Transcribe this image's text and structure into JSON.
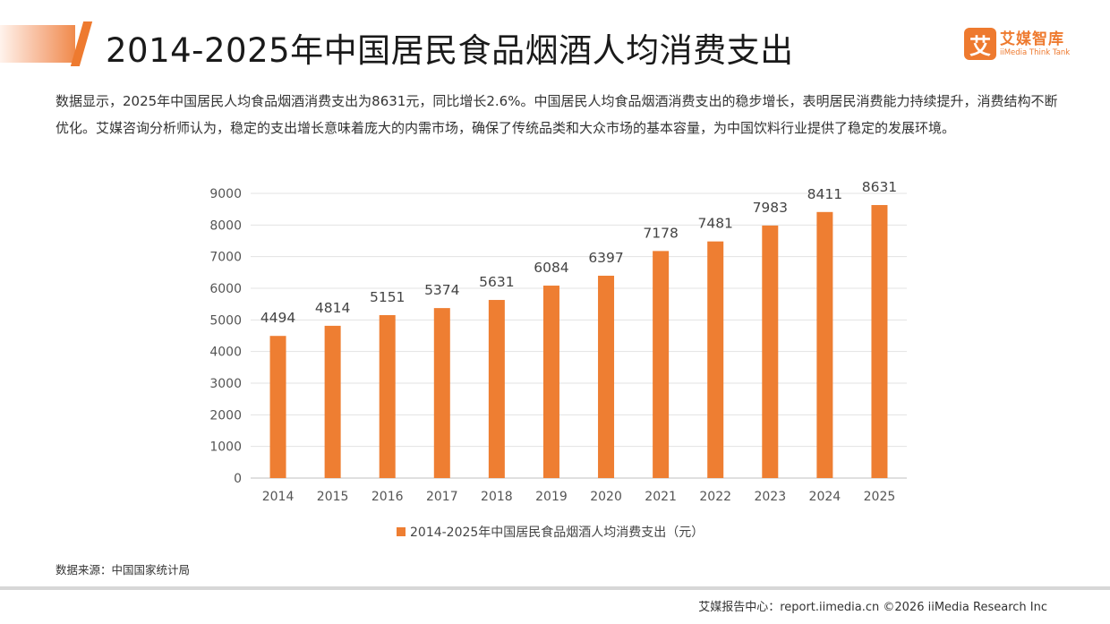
{
  "header": {
    "title": "2014-2025年中国居民食品烟酒人均消费支出"
  },
  "brand": {
    "icon_char": "艾",
    "name_cn": "艾媒智库",
    "name_en": "iiMedia Think Tank",
    "color": "#ee7a2f"
  },
  "description": "数据显示，2025年中国居民人均食品烟酒消费支出为8631元，同比增长2.6%。中国居民人均食品烟酒消费支出的稳步增长，表明居民消费能力持续提升，消费结构不断优化。艾媒咨询分析师认为，稳定的支出增长意味着庞大的内需市场，确保了传统品类和大众市场的基本容量，为中国饮料行业提供了稳定的发展环境。",
  "chart_data": {
    "type": "bar",
    "categories": [
      "2014",
      "2015",
      "2016",
      "2017",
      "2018",
      "2019",
      "2020",
      "2021",
      "2022",
      "2023",
      "2024",
      "2025"
    ],
    "series": [
      {
        "name": "2014-2025年中国居民食品烟酒人均消费支出（元）",
        "values": [
          4494,
          4814,
          5151,
          5374,
          5631,
          6084,
          6397,
          7178,
          7481,
          7983,
          8411,
          8631
        ],
        "color": "#ee7e32"
      }
    ],
    "y_ticks": [
      0,
      1000,
      2000,
      3000,
      4000,
      5000,
      6000,
      7000,
      8000,
      9000
    ],
    "ylim": [
      0,
      9000
    ],
    "grid": true,
    "data_labels": true,
    "legend_position": "bottom"
  },
  "source": "数据来源：中国国家统计局",
  "footer": "艾媒报告中心：report.iimedia.cn ©2026 iiMedia Research Inc"
}
